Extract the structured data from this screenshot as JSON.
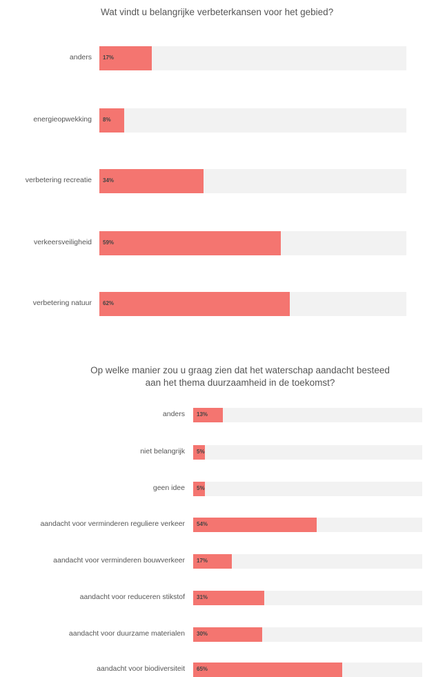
{
  "chart_data": [
    {
      "type": "bar",
      "orientation": "horizontal",
      "title": "Wat vindt u belangrijke verbeterkansen voor het gebied?",
      "categories": [
        "anders",
        "energieopwekking",
        "verbetering recreatie",
        "verkeersveiligheid",
        "verbetering natuur"
      ],
      "values": [
        17,
        8,
        34,
        59,
        62
      ],
      "value_labels": [
        "17%",
        "8%",
        "34%",
        "59%",
        "62%"
      ],
      "xlim": [
        0,
        100
      ],
      "unit": "%",
      "bar_color": "#f47570",
      "track_color": "#f2f2f2",
      "grid": false
    },
    {
      "type": "bar",
      "orientation": "horizontal",
      "title": "Op welke manier zou u graag zien dat het waterschap aandacht besteed\naan het thema duurzaamheid in de toekomst?",
      "categories": [
        "anders",
        "niet belangrijk",
        "geen idee",
        "aandacht voor verminderen reguliere verkeer",
        "aandacht voor verminderen bouwverkeer",
        "aandacht voor reduceren stikstof",
        "aandacht voor duurzame materialen",
        "aandacht voor biodiversiteit"
      ],
      "values": [
        13,
        5,
        5,
        54,
        17,
        31,
        30,
        65
      ],
      "value_labels": [
        "13%",
        "5%",
        "5%",
        "54%",
        "17%",
        "31%",
        "30%",
        "65%"
      ],
      "xlim": [
        0,
        100
      ],
      "unit": "%",
      "bar_color": "#f47570",
      "track_color": "#f2f2f2",
      "grid": false
    }
  ]
}
